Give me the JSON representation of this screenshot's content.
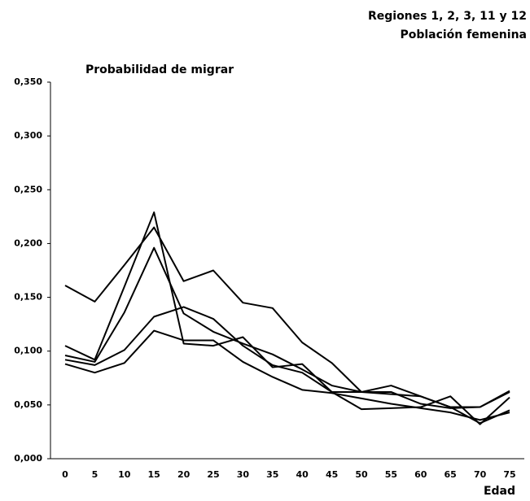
{
  "chart_data": {
    "type": "line",
    "title": [
      "Regiones 1, 2, 3, 11 y 12",
      "Población femenina"
    ],
    "subtitle": "Probabilidad de migrar",
    "x_label": "Edad",
    "categories": [
      "0",
      "5",
      "10",
      "15",
      "20",
      "25",
      "30",
      "35",
      "40",
      "45",
      "50",
      "55",
      "60",
      "65",
      "70",
      "75"
    ],
    "series": [
      {
        "color": "#000000",
        "values": [
          0.161,
          0.146,
          0.18,
          0.215,
          0.165,
          0.175,
          0.145,
          0.14,
          0.108,
          0.089,
          0.062,
          0.06,
          0.058,
          0.048,
          0.033,
          0.045
        ]
      },
      {
        "color": "#000000",
        "values": [
          0.105,
          0.092,
          0.16,
          0.229,
          0.107,
          0.105,
          0.113,
          0.085,
          0.088,
          0.062,
          0.046,
          0.047,
          0.048,
          0.058,
          0.032,
          0.057
        ]
      },
      {
        "color": "#000000",
        "values": [
          0.096,
          0.09,
          0.136,
          0.196,
          0.135,
          0.118,
          0.107,
          0.097,
          0.083,
          0.068,
          0.062,
          0.068,
          0.058,
          0.048,
          0.048,
          0.063
        ]
      },
      {
        "color": "#000000",
        "values": [
          0.092,
          0.087,
          0.101,
          0.132,
          0.141,
          0.13,
          0.105,
          0.087,
          0.08,
          0.062,
          0.062,
          0.062,
          0.051,
          0.047,
          0.048,
          0.062
        ]
      },
      {
        "color": "#000000",
        "values": [
          0.088,
          0.08,
          0.089,
          0.119,
          0.11,
          0.11,
          0.09,
          0.076,
          0.064,
          0.061,
          0.056,
          0.051,
          0.047,
          0.043,
          0.036,
          0.043
        ]
      }
    ],
    "ylim": [
      0,
      0.35
    ],
    "yticks": [
      {
        "value": 0,
        "label": "0,000"
      },
      {
        "value": 0.05,
        "label": "0,050"
      },
      {
        "value": 0.1,
        "label": "0,100"
      },
      {
        "value": 0.15,
        "label": "0,150"
      },
      {
        "value": 0.2,
        "label": "0,200"
      },
      {
        "value": 0.25,
        "label": "0,250"
      },
      {
        "value": 0.3,
        "label": "0,300"
      },
      {
        "value": 0.35,
        "label": "0,350"
      }
    ],
    "grid": false
  }
}
